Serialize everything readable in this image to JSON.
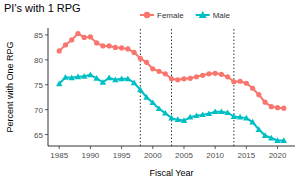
{
  "chart_data": {
    "type": "line",
    "title": "PI's with 1 RPG",
    "x_label": "Fiscal Year",
    "y_label": "Percent with One RPG",
    "x": [
      1985,
      1986,
      1987,
      1988,
      1989,
      1990,
      1991,
      1992,
      1993,
      1994,
      1995,
      1996,
      1997,
      1998,
      1999,
      2000,
      2001,
      2002,
      2003,
      2004,
      2005,
      2006,
      2007,
      2008,
      2009,
      2010,
      2011,
      2012,
      2013,
      2014,
      2015,
      2016,
      2017,
      2018,
      2019,
      2020,
      2021
    ],
    "series": [
      {
        "name": "Female",
        "color": "#F8766D",
        "marker": "circle",
        "values": [
          81.8,
          83.0,
          84.0,
          85.3,
          84.5,
          84.6,
          83.4,
          82.8,
          82.8,
          82.5,
          82.4,
          82.2,
          81.5,
          80.3,
          79.5,
          78.2,
          77.7,
          77.2,
          76.2,
          76.0,
          76.2,
          76.3,
          76.6,
          76.9,
          77.2,
          77.3,
          77.1,
          76.6,
          75.6,
          75.7,
          75.3,
          74.3,
          73.0,
          71.5,
          70.6,
          70.4,
          70.3
        ]
      },
      {
        "name": "Male",
        "color": "#00BFC4",
        "marker": "triangle",
        "values": [
          75.2,
          76.5,
          76.4,
          76.6,
          76.7,
          77.0,
          76.3,
          75.5,
          76.4,
          76.0,
          76.2,
          76.2,
          75.4,
          74.0,
          72.5,
          71.4,
          70.2,
          69.3,
          68.3,
          68.0,
          67.8,
          68.5,
          68.8,
          69.0,
          69.2,
          69.6,
          69.6,
          69.4,
          68.6,
          68.5,
          68.3,
          67.5,
          66.0,
          64.8,
          64.3,
          63.8,
          63.8
        ]
      }
    ],
    "xlim": [
      1983.2,
      2022.8
    ],
    "xticks": [
      1985,
      1990,
      1995,
      2000,
      2005,
      2010,
      2015,
      2020
    ],
    "ylim": [
      62.7,
      86.4
    ],
    "yticks": [
      65,
      70,
      75,
      80,
      85
    ],
    "vlines": [
      1998,
      2003,
      2013
    ],
    "grid": false,
    "legend": "top"
  }
}
